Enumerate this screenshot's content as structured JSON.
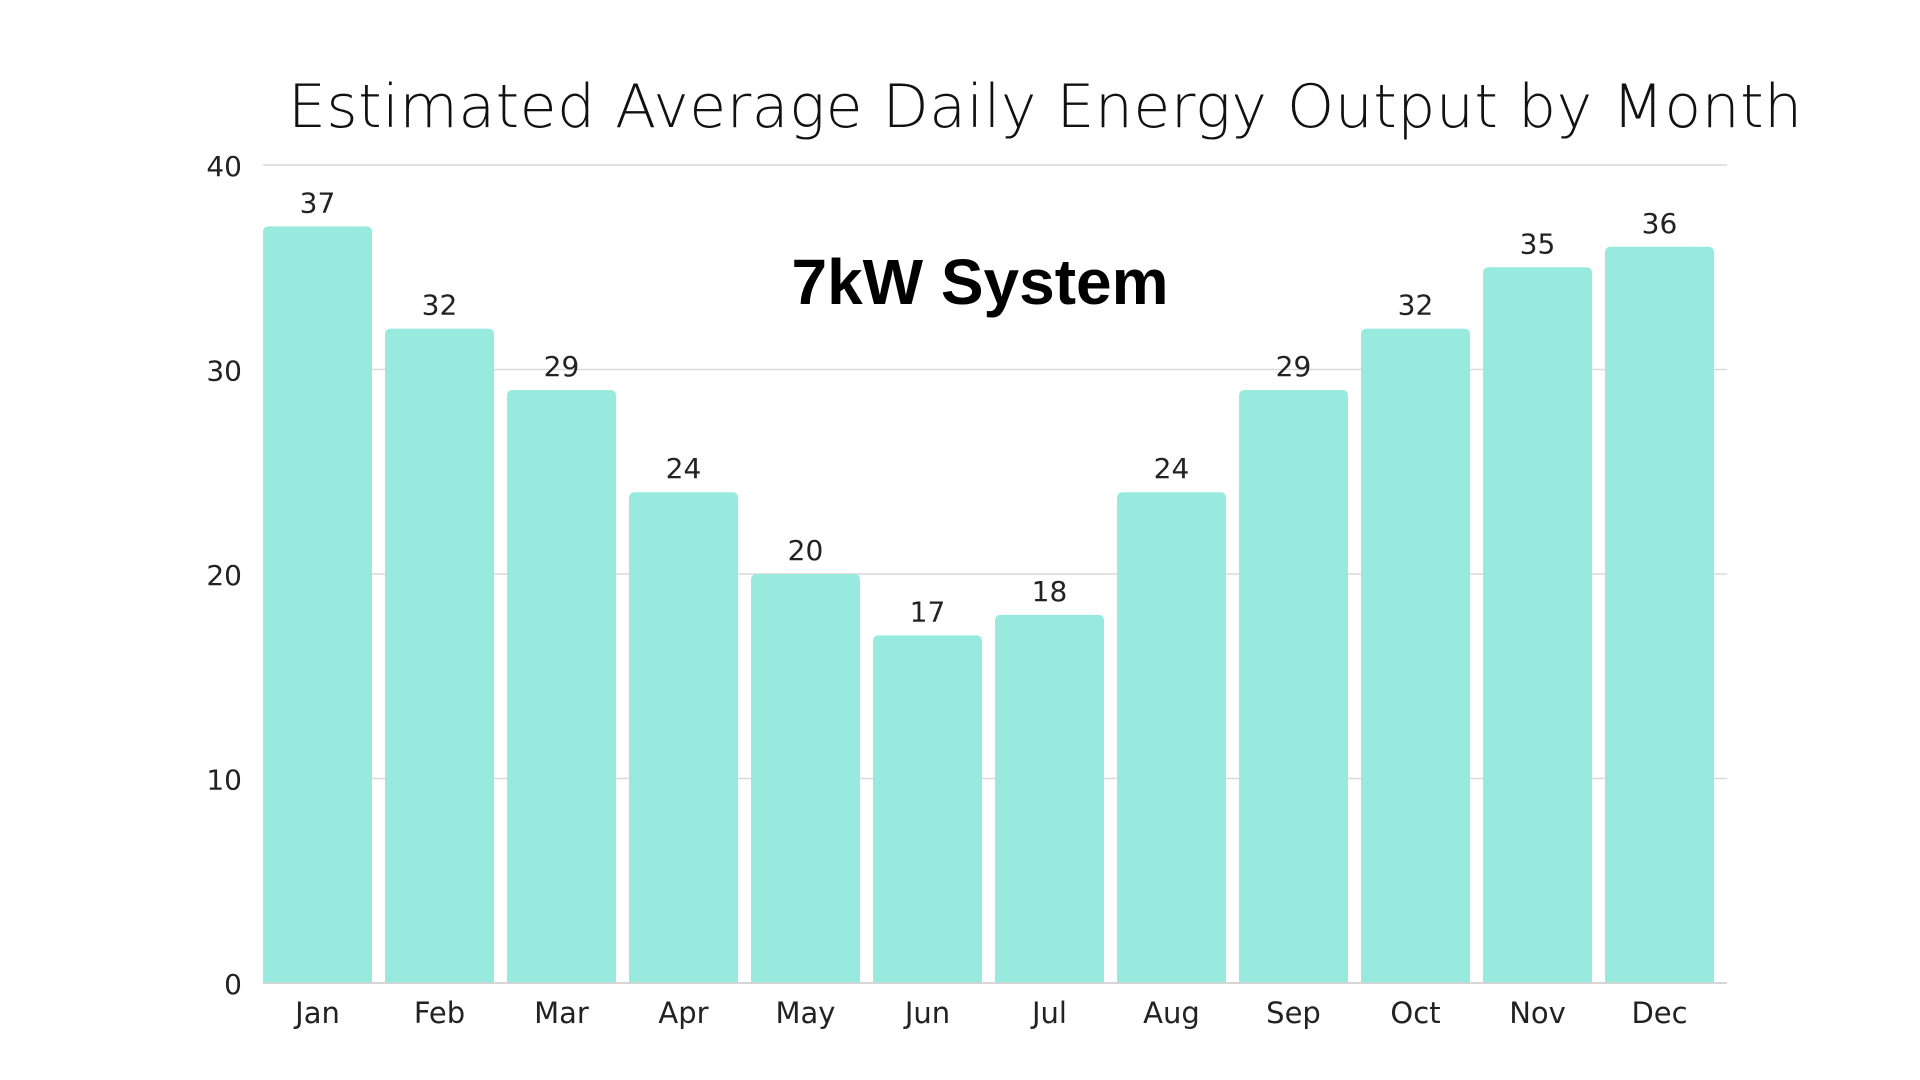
{
  "chart_data": {
    "type": "bar",
    "title": "Estimated Average Daily Energy Output by Month",
    "annotation": "7kW System",
    "xlabel": "",
    "ylabel": "",
    "categories": [
      "Jan",
      "Feb",
      "Mar",
      "Apr",
      "May",
      "Jun",
      "Jul",
      "Aug",
      "Sep",
      "Oct",
      "Nov",
      "Dec"
    ],
    "values": [
      37,
      32,
      29,
      24,
      20,
      17,
      18,
      24,
      29,
      32,
      35,
      36
    ],
    "data_labels": [
      "37",
      "32",
      "29",
      "24",
      "20",
      "17",
      "18",
      "24",
      "29",
      "32",
      "35",
      "36"
    ],
    "ylim": [
      0,
      40
    ],
    "yticks": [
      0,
      10,
      20,
      30,
      40
    ],
    "ytick_labels": [
      "0",
      "10",
      "20",
      "30",
      "40"
    ],
    "grid": true,
    "legend": "none",
    "colors": {
      "bar": "#98EADF",
      "grid": "#D9D9D9",
      "text": "#222222"
    }
  }
}
